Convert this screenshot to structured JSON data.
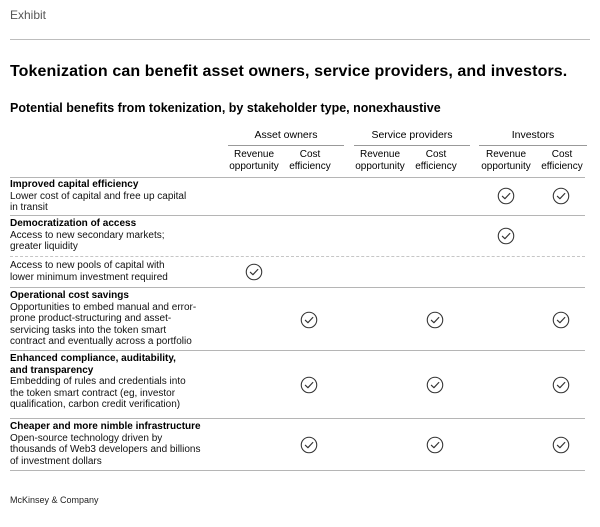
{
  "header": {
    "label": "Exhibit"
  },
  "title": "Tokenization can benefit asset owners, service providers, and investors.",
  "subtitle": "Potential benefits from tokenization, by stakeholder type, nonexhaustive",
  "groups": [
    {
      "name": "Asset owners",
      "columns": [
        "Revenue opportunity",
        "Cost efficiency"
      ]
    },
    {
      "name": "Service providers",
      "columns": [
        "Revenue opportunity",
        "Cost efficiency"
      ]
    },
    {
      "name": "Investors",
      "columns": [
        "Revenue opportunity",
        "Cost efficiency"
      ]
    }
  ],
  "col_lines": {
    "c0": [
      "Revenue",
      "opportunity"
    ],
    "c1": [
      "Cost",
      "efficiency"
    ],
    "c2": [
      "Revenue",
      "opportunity"
    ],
    "c3": [
      "Cost",
      "efficiency"
    ],
    "c4": [
      "Revenue",
      "opportunity"
    ],
    "c5": [
      "Cost",
      "efficiency"
    ]
  },
  "rows": [
    {
      "title": [
        "Improved capital efficiency"
      ],
      "desc": [
        "Lower cost of capital and free up capital",
        "in transit"
      ],
      "checks": [
        false,
        false,
        false,
        false,
        true,
        true
      ]
    },
    {
      "title": [
        "Democratization of access"
      ],
      "desc": [
        "Access to new secondary markets;",
        "greater liquidity"
      ],
      "checks": [
        false,
        false,
        false,
        false,
        true,
        false
      ]
    },
    {
      "title": [],
      "desc": [
        "Access to new pools of capital with",
        "lower minimum investment required"
      ],
      "checks": [
        true,
        false,
        false,
        false,
        false,
        false
      ]
    },
    {
      "title": [
        "Operational cost savings"
      ],
      "desc": [
        "Opportunities to embed manual and error-",
        "prone product-structuring and asset-",
        "servicing tasks into the token smart",
        "contract and eventually across a portfolio"
      ],
      "checks": [
        false,
        true,
        false,
        true,
        false,
        true
      ]
    },
    {
      "title": [
        "Enhanced compliance, auditability,",
        "and transparency"
      ],
      "desc": [
        "Embedding of rules and credentials into",
        "the token smart contract (eg, investor",
        "qualification, carbon credit verification)"
      ],
      "checks": [
        false,
        true,
        false,
        true,
        false,
        true
      ]
    },
    {
      "title": [
        "Cheaper and more nimble infrastructure"
      ],
      "desc": [
        "Open-source technology driven by",
        "thousands of Web3 developers and billions",
        "of investment dollars"
      ],
      "checks": [
        false,
        true,
        false,
        true,
        false,
        true
      ]
    }
  ],
  "footer": "McKinsey & Company",
  "colors": {
    "check_stroke": "#333333",
    "rule": "#b5b5b5"
  }
}
